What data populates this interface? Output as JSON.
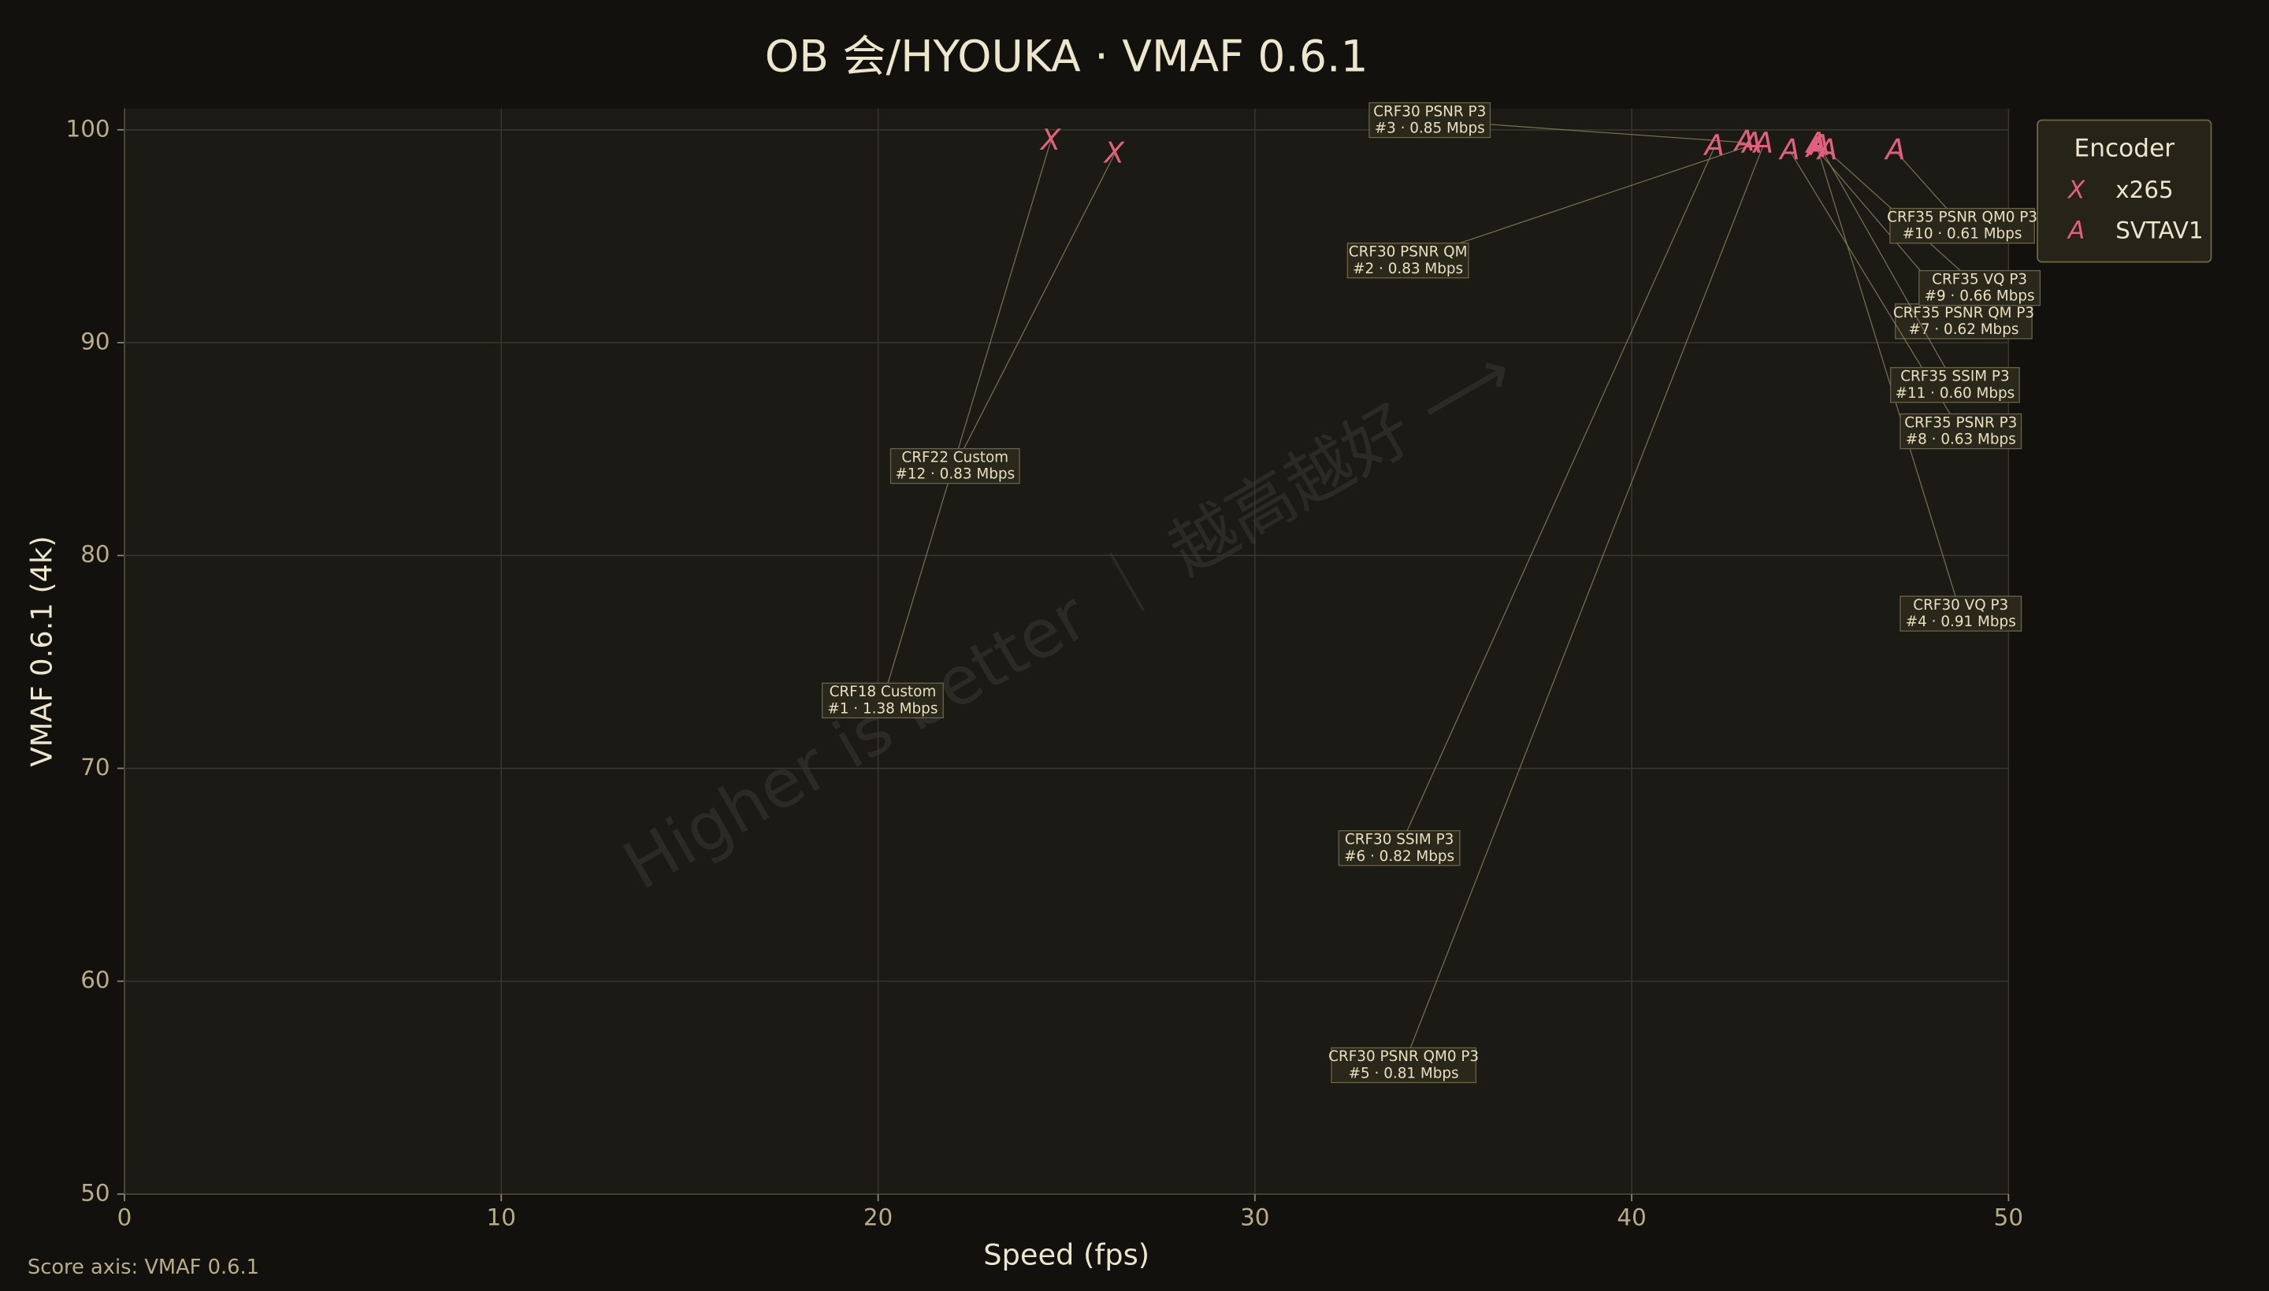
{
  "chart_data": {
    "type": "scatter",
    "title": "OB 会/HYOUKA · VMAF 0.6.1",
    "x_label": "Speed (fps)",
    "y_label": "VMAF 0.6.1 (4k)",
    "watermark": "Higher is better ｜ 越高越好 ⟶",
    "footer": "Score axis: VMAF 0.6.1",
    "legend_title": "Encoder",
    "legend": "upper right",
    "grid": true,
    "xlim": [
      0,
      50
    ],
    "xticks": [
      0,
      10,
      20,
      30,
      40,
      50
    ],
    "ylim": [
      50,
      101
    ],
    "yticks": [
      50,
      60,
      70,
      80,
      90,
      100
    ],
    "series": [
      {
        "name": "x265",
        "marker": "X",
        "color": "#e0607e",
        "x": [
          24.58,
          26.27
        ],
        "values": [
          99.46,
          98.84
        ],
        "labels": [
          [
            "CRF18 Custom",
            "#1 · 1.38 Mbps"
          ],
          [
            "CRF22 Custom",
            "#12 · 0.83 Mbps"
          ]
        ]
      },
      {
        "name": "SVTAV1",
        "marker": "A",
        "color": "#e0607e",
        "x": [
          43.2,
          43.0,
          44.9,
          43.5,
          42.2,
          44.9,
          44.2,
          45.2,
          47.0,
          45.0
        ],
        "values": [
          99.3,
          99.4,
          99.3,
          99.3,
          99.2,
          99.1,
          99.0,
          99.0,
          99.0,
          99.2
        ],
        "labels": [
          [
            "CRF30 PSNR QM",
            "#2 · 0.83 Mbps"
          ],
          [
            "CRF30 PSNR P3",
            "#3 · 0.85 Mbps"
          ],
          [
            "CRF30 VQ P3",
            "#4 · 0.91 Mbps"
          ],
          [
            "CRF30 PSNR QM0 P3",
            "#5 · 0.81 Mbps"
          ],
          [
            "CRF30 SSIM P3",
            "#6 · 0.82 Mbps"
          ],
          [
            "CRF35 PSNR QM P3",
            "#7 · 0.62 Mbps"
          ],
          [
            "CRF35 PSNR P3",
            "#8 · 0.63 Mbps"
          ],
          [
            "CRF35 VQ P3",
            "#9 · 0.66 Mbps"
          ],
          [
            "CRF35 PSNR QM0 P3",
            "#10 · 0.61 Mbps"
          ],
          [
            "CRF35 SSIM P3",
            "#11 · 0.60 Mbps"
          ]
        ]
      }
    ]
  }
}
